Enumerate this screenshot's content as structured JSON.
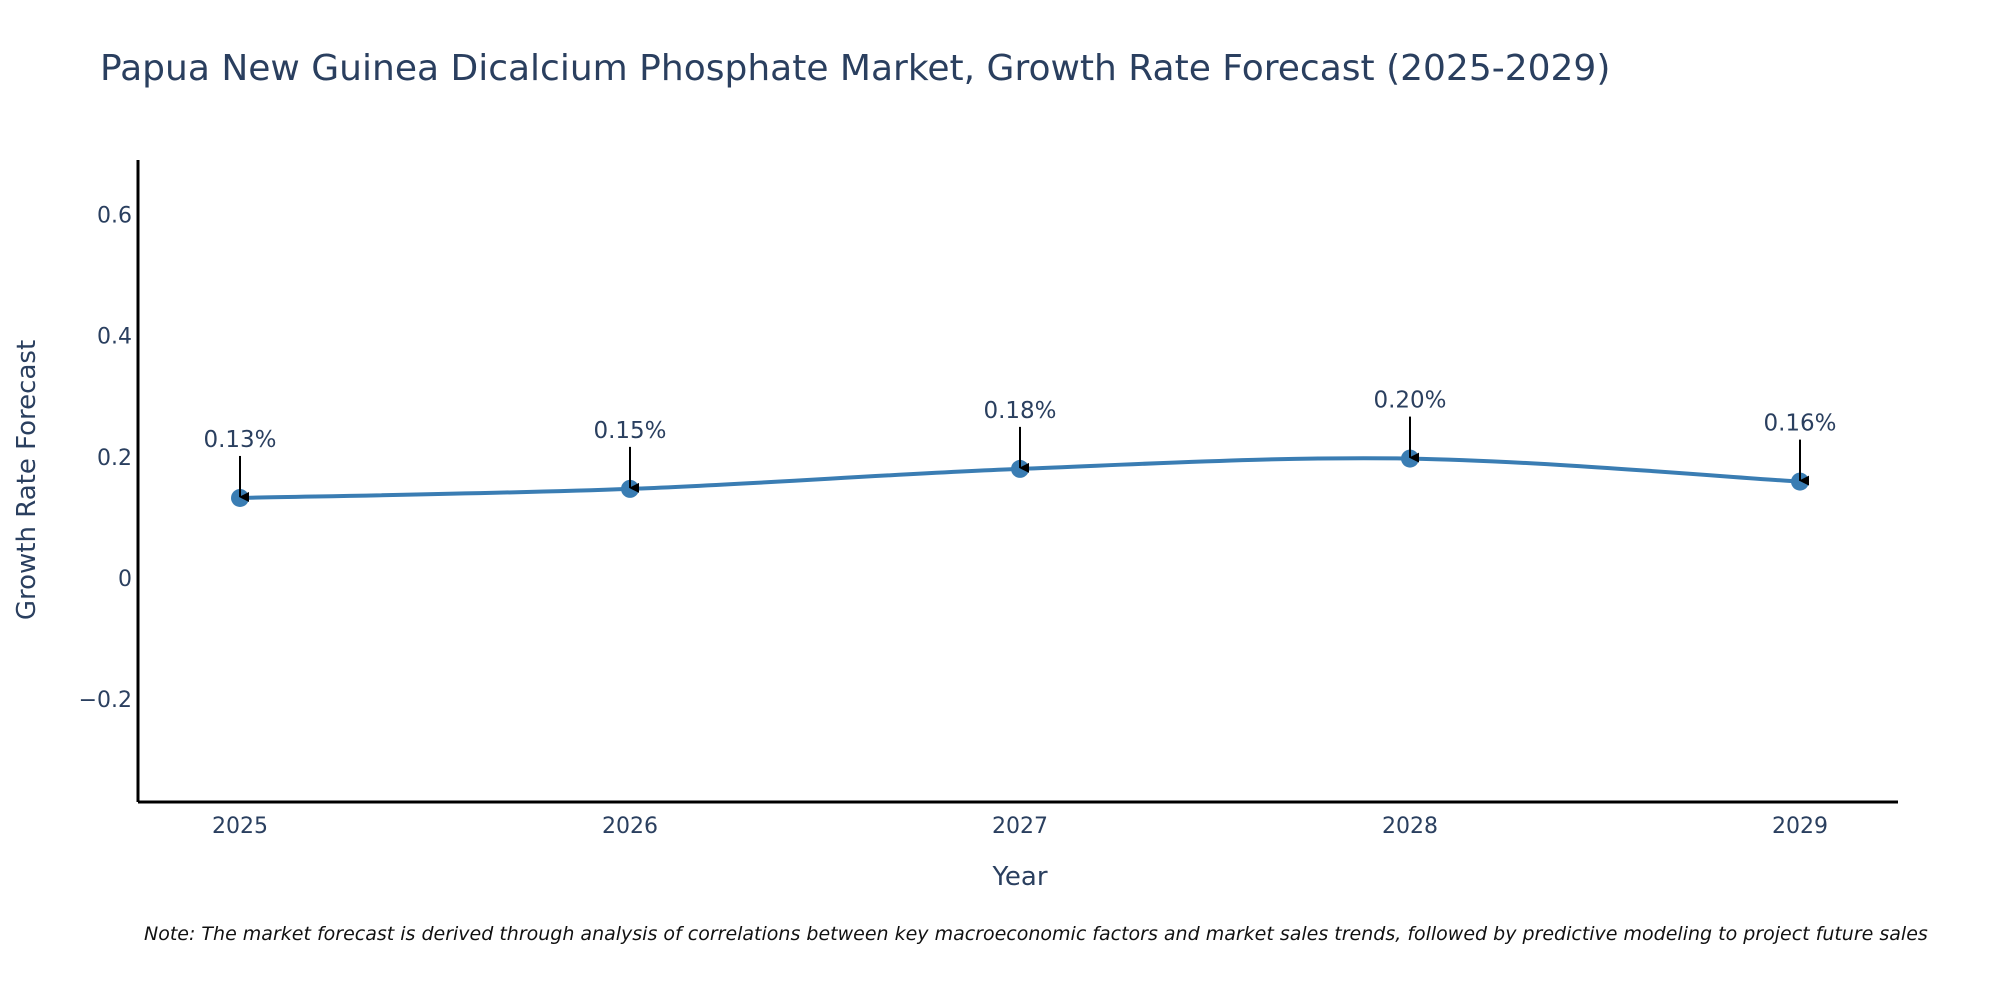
{
  "chart_data": {
    "type": "line",
    "title": "Papua New Guinea Dicalcium Phosphate Market, Growth Rate Forecast (2025-2029)",
    "xlabel": "Year",
    "ylabel": "Growth Rate Forecast",
    "categories": [
      "2025",
      "2026",
      "2027",
      "2028",
      "2029"
    ],
    "series": [
      {
        "name": "Growth Rate Forecast",
        "values": [
          0.132,
          0.147,
          0.18,
          0.197,
          0.159
        ]
      }
    ],
    "data_labels": [
      "0.13%",
      "0.15%",
      "0.18%",
      "0.20%",
      "0.16%"
    ],
    "y_ticks": [
      -0.2,
      0,
      0.2,
      0.4,
      0.6
    ],
    "y_tick_labels": [
      "−0.2",
      "0",
      "0.2",
      "0.4",
      "0.6"
    ],
    "ylim": [
      -0.37,
      0.69
    ],
    "grid": false,
    "line_color": "#3a7db3",
    "note": "Note: The market forecast is derived through analysis of correlations between key macroeconomic factors and market sales trends, followed by predictive modeling to project future sales"
  }
}
